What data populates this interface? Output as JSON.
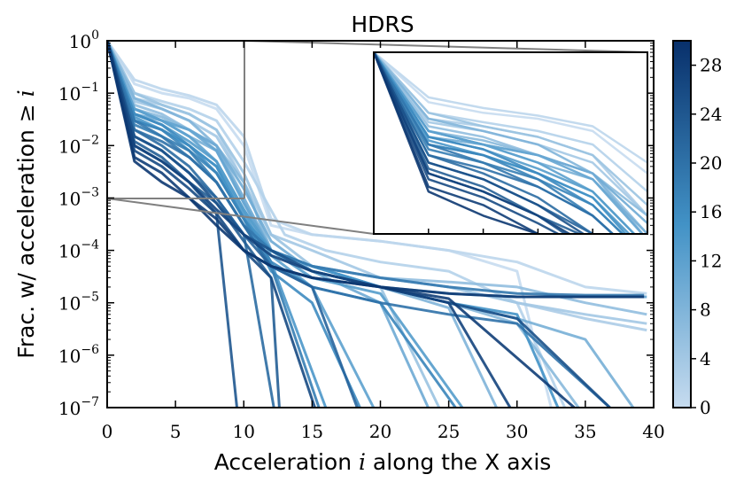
{
  "chart_data": {
    "type": "line",
    "title": "HDRS",
    "xlabel": "Acceleration i along the X axis",
    "ylabel": "Frac. w/ acceleration ≥ i",
    "xlim": [
      0,
      40
    ],
    "ylim": [
      1e-07,
      1
    ],
    "yscale": "log",
    "x_ticks": [
      "0",
      "5",
      "10",
      "15",
      "20",
      "25",
      "30",
      "35",
      "40"
    ],
    "y_ticks": [
      {
        "base": "10",
        "exp": "0"
      },
      {
        "base": "10",
        "exp": "−1"
      },
      {
        "base": "10",
        "exp": "−2"
      },
      {
        "base": "10",
        "exp": "−3"
      },
      {
        "base": "10",
        "exp": "−4"
      },
      {
        "base": "10",
        "exp": "−5"
      },
      {
        "base": "10",
        "exp": "−6"
      },
      {
        "base": "10",
        "exp": "−7"
      }
    ],
    "colorbar": {
      "ticks": [
        "0",
        "4",
        "8",
        "12",
        "16",
        "20",
        "24",
        "28"
      ],
      "range": [
        0,
        30
      ],
      "colors": [
        "#c6dbef",
        "#08306b"
      ]
    },
    "inset": {
      "xlim": [
        0,
        10
      ],
      "ylim": [
        0.001,
        1
      ],
      "yscale": "log"
    },
    "series": [
      {
        "c": 0,
        "x": [
          0,
          2,
          4,
          6,
          8,
          10,
          12,
          15,
          20,
          25,
          30,
          32.5
        ],
        "y": [
          1,
          0.15,
          0.1,
          0.08,
          0.05,
          0.01,
          0.0003,
          0.0002,
          0.00015,
          0.0001,
          4e-05,
          1e-07
        ]
      },
      {
        "c": 1,
        "x": [
          0,
          2,
          4,
          6,
          8,
          10,
          12,
          15,
          20,
          25,
          30,
          35,
          39.5
        ],
        "y": [
          1,
          0.18,
          0.12,
          0.09,
          0.06,
          0.015,
          0.0004,
          0.0002,
          0.00015,
          0.0001,
          6e-05,
          2e-05,
          1.5e-05
        ]
      },
      {
        "c": 2,
        "x": [
          0,
          2,
          4,
          6,
          8,
          10,
          13,
          16,
          20,
          25,
          30,
          33.5
        ],
        "y": [
          1,
          0.1,
          0.07,
          0.05,
          0.03,
          0.005,
          0.0002,
          0.0001,
          6e-05,
          4e-05,
          1e-05,
          1e-07
        ]
      },
      {
        "c": 3,
        "x": [
          0,
          2,
          4,
          6,
          8,
          10,
          12,
          15,
          20,
          25,
          30,
          35,
          39.5
        ],
        "y": [
          1,
          0.08,
          0.06,
          0.04,
          0.02,
          0.002,
          0.0001,
          5e-05,
          3e-05,
          2e-05,
          1e-05,
          5e-06,
          3e-06
        ]
      },
      {
        "c": 4,
        "x": [
          0,
          2,
          4,
          6,
          8,
          10,
          12,
          15,
          20,
          25,
          30,
          35,
          39.5
        ],
        "y": [
          1,
          0.07,
          0.05,
          0.03,
          0.015,
          0.002,
          0.0002,
          0.0001,
          3e-05,
          2e-05,
          1e-05,
          6e-06,
          4e-06
        ]
      },
      {
        "c": 5,
        "x": [
          0,
          2,
          4,
          6,
          8,
          10,
          12,
          15,
          20,
          24.3
        ],
        "y": [
          1,
          0.1,
          0.06,
          0.04,
          0.02,
          0.003,
          0.0002,
          5e-05,
          2e-05,
          1e-07
        ]
      },
      {
        "c": 6,
        "x": [
          0,
          2,
          4,
          6,
          8,
          10,
          12,
          15,
          20,
          25,
          30,
          35,
          39.5
        ],
        "y": [
          1,
          0.06,
          0.04,
          0.02,
          0.01,
          0.001,
          0.0001,
          5e-05,
          3e-05,
          2.5e-05,
          2e-05,
          1e-05,
          6e-06
        ]
      },
      {
        "c": 7,
        "x": [
          0,
          2,
          4,
          6,
          8,
          10,
          12,
          15,
          20,
          25,
          30,
          34.5
        ],
        "y": [
          1,
          0.05,
          0.035,
          0.02,
          0.01,
          0.002,
          0.0001,
          5e-05,
          2e-05,
          1e-05,
          4e-06,
          1e-07
        ]
      },
      {
        "c": 8,
        "x": [
          0,
          2,
          4,
          6,
          8,
          10,
          12,
          15,
          20,
          25,
          28.5
        ],
        "y": [
          1,
          0.08,
          0.05,
          0.03,
          0.01,
          0.0008,
          0.0001,
          4e-05,
          2e-05,
          8e-06,
          1e-07
        ]
      },
      {
        "c": 9,
        "x": [
          0,
          2,
          4,
          6,
          8,
          10,
          12,
          15,
          20,
          25,
          30,
          35,
          38.5
        ],
        "y": [
          1,
          0.05,
          0.03,
          0.015,
          0.008,
          0.001,
          0.0001,
          4e-05,
          2e-05,
          1e-05,
          5e-06,
          2e-06,
          1e-07
        ]
      },
      {
        "c": 10,
        "x": [
          0,
          2,
          4,
          6,
          8,
          10,
          12,
          15,
          20,
          23.5
        ],
        "y": [
          1,
          0.04,
          0.03,
          0.02,
          0.01,
          0.0015,
          0.00015,
          4e-05,
          1e-05,
          1e-07
        ]
      },
      {
        "c": 11,
        "x": [
          0,
          2,
          4,
          6,
          8,
          10,
          12,
          15,
          20,
          25,
          30,
          35,
          39.5
        ],
        "y": [
          1,
          0.05,
          0.03,
          0.02,
          0.008,
          0.0008,
          0.0001,
          5e-05,
          2e-05,
          1.5e-05,
          1.3e-05,
          1.3e-05,
          1.3e-05
        ]
      },
      {
        "c": 12,
        "x": [
          0,
          2,
          4,
          6,
          8,
          10,
          12,
          15,
          19.5
        ],
        "y": [
          1,
          0.05,
          0.03,
          0.015,
          0.005,
          0.0006,
          8e-05,
          2e-05,
          1e-07
        ]
      },
      {
        "c": 13,
        "x": [
          0,
          2,
          4,
          6,
          8,
          10,
          12,
          15,
          20,
          26
        ],
        "y": [
          1,
          0.04,
          0.025,
          0.012,
          0.005,
          0.0006,
          0.0001,
          3e-05,
          1.5e-05,
          1e-07
        ]
      },
      {
        "c": 14,
        "x": [
          0,
          2,
          4,
          6,
          8,
          10,
          12,
          16
        ],
        "y": [
          1,
          0.035,
          0.02,
          0.01,
          0.004,
          0.0005,
          6e-05,
          1e-07
        ]
      },
      {
        "c": 15,
        "x": [
          0,
          2,
          4,
          6,
          8,
          10,
          12,
          15,
          20,
          25,
          30,
          33
        ],
        "y": [
          1,
          0.03,
          0.02,
          0.01,
          0.004,
          0.0004,
          0.0001,
          5e-05,
          2e-05,
          1e-05,
          6e-06,
          1e-07
        ]
      },
      {
        "c": 16,
        "x": [
          0,
          2,
          4,
          6,
          8,
          10,
          12,
          15,
          18.5
        ],
        "y": [
          1,
          0.04,
          0.025,
          0.01,
          0.003,
          0.0004,
          4e-05,
          1e-05,
          1e-07
        ]
      },
      {
        "c": 17,
        "x": [
          0,
          2,
          4,
          6,
          8,
          10,
          12,
          15,
          20,
          25.5
        ],
        "y": [
          1,
          0.03,
          0.02,
          0.008,
          0.003,
          0.0004,
          6e-05,
          2e-05,
          1e-05,
          1e-07
        ]
      },
      {
        "c": 18,
        "x": [
          0,
          2,
          4,
          6,
          8,
          10,
          12,
          15.5
        ],
        "y": [
          1,
          0.025,
          0.015,
          0.008,
          0.002,
          0.0003,
          5e-05,
          1e-07
        ]
      },
      {
        "c": 19,
        "x": [
          0,
          2,
          4,
          6,
          8,
          10,
          12,
          15,
          20,
          25,
          30,
          35,
          39.3
        ],
        "y": [
          1,
          0.03,
          0.015,
          0.006,
          0.002,
          0.0003,
          0.0001,
          5e-05,
          3e-05,
          2e-05,
          1.5e-05,
          1.4e-05,
          1.4e-05
        ]
      },
      {
        "c": 20,
        "x": [
          0,
          2,
          4,
          6,
          8,
          10,
          12,
          15,
          20,
          25,
          30,
          36.8
        ],
        "y": [
          1,
          0.02,
          0.012,
          0.006,
          0.002,
          0.0003,
          5e-05,
          2e-05,
          1e-05,
          6e-06,
          4e-06,
          1e-07
        ]
      },
      {
        "c": 21,
        "x": [
          0,
          2,
          4,
          6,
          8,
          10,
          12.2
        ],
        "y": [
          1,
          0.02,
          0.01,
          0.004,
          0.001,
          0.0002,
          1e-07
        ]
      },
      {
        "c": 22,
        "x": [
          0,
          2,
          4,
          6,
          8,
          10,
          12,
          15,
          18.3
        ],
        "y": [
          1,
          0.015,
          0.008,
          0.003,
          0.001,
          0.0002,
          5e-05,
          2e-05,
          1e-07
        ]
      },
      {
        "c": 23,
        "x": [
          0,
          2,
          4,
          6,
          8,
          10,
          12,
          12.6
        ],
        "y": [
          1,
          0.012,
          0.006,
          0.002,
          0.0008,
          0.00015,
          3e-05,
          1e-07
        ]
      },
      {
        "c": 24,
        "x": [
          0,
          2,
          4,
          6,
          8,
          9.5
        ],
        "y": [
          1,
          0.01,
          0.005,
          0.002,
          0.0005,
          1e-07
        ]
      },
      {
        "c": 25,
        "x": [
          0,
          2,
          4,
          6,
          8,
          10,
          12,
          15,
          20,
          25,
          30,
          36.8
        ],
        "y": [
          1,
          0.015,
          0.008,
          0.003,
          0.0008,
          0.0002,
          0.0001,
          4e-05,
          2e-05,
          1e-05,
          5e-06,
          1e-07
        ]
      },
      {
        "c": 26,
        "x": [
          0,
          2,
          4,
          6,
          8,
          10,
          12,
          15.2
        ],
        "y": [
          1,
          0.008,
          0.004,
          0.0015,
          0.0005,
          0.0001,
          3e-05,
          1e-07
        ]
      },
      {
        "c": 27,
        "x": [
          0,
          2,
          4,
          6,
          8,
          10,
          12,
          15,
          20,
          25,
          29.5
        ],
        "y": [
          1,
          0.01,
          0.005,
          0.002,
          0.0006,
          0.0002,
          8e-05,
          4e-05,
          2e-05,
          1e-05,
          1e-07
        ]
      },
      {
        "c": 28,
        "x": [
          0,
          2,
          4,
          6,
          8,
          10,
          12,
          15,
          20,
          25,
          34.2
        ],
        "y": [
          1,
          0.006,
          0.003,
          0.001,
          0.0004,
          0.0001,
          5e-05,
          3e-05,
          2e-05,
          1.2e-05,
          1e-07
        ]
      },
      {
        "c": 29,
        "x": [
          0,
          2,
          4,
          6,
          8,
          10,
          12,
          15,
          20,
          25,
          30,
          39.3
        ],
        "y": [
          1,
          0.005,
          0.002,
          0.001,
          0.0003,
          0.0001,
          5e-05,
          3e-05,
          2e-05,
          1.5e-05,
          1.3e-05,
          1.3e-05
        ]
      }
    ]
  }
}
